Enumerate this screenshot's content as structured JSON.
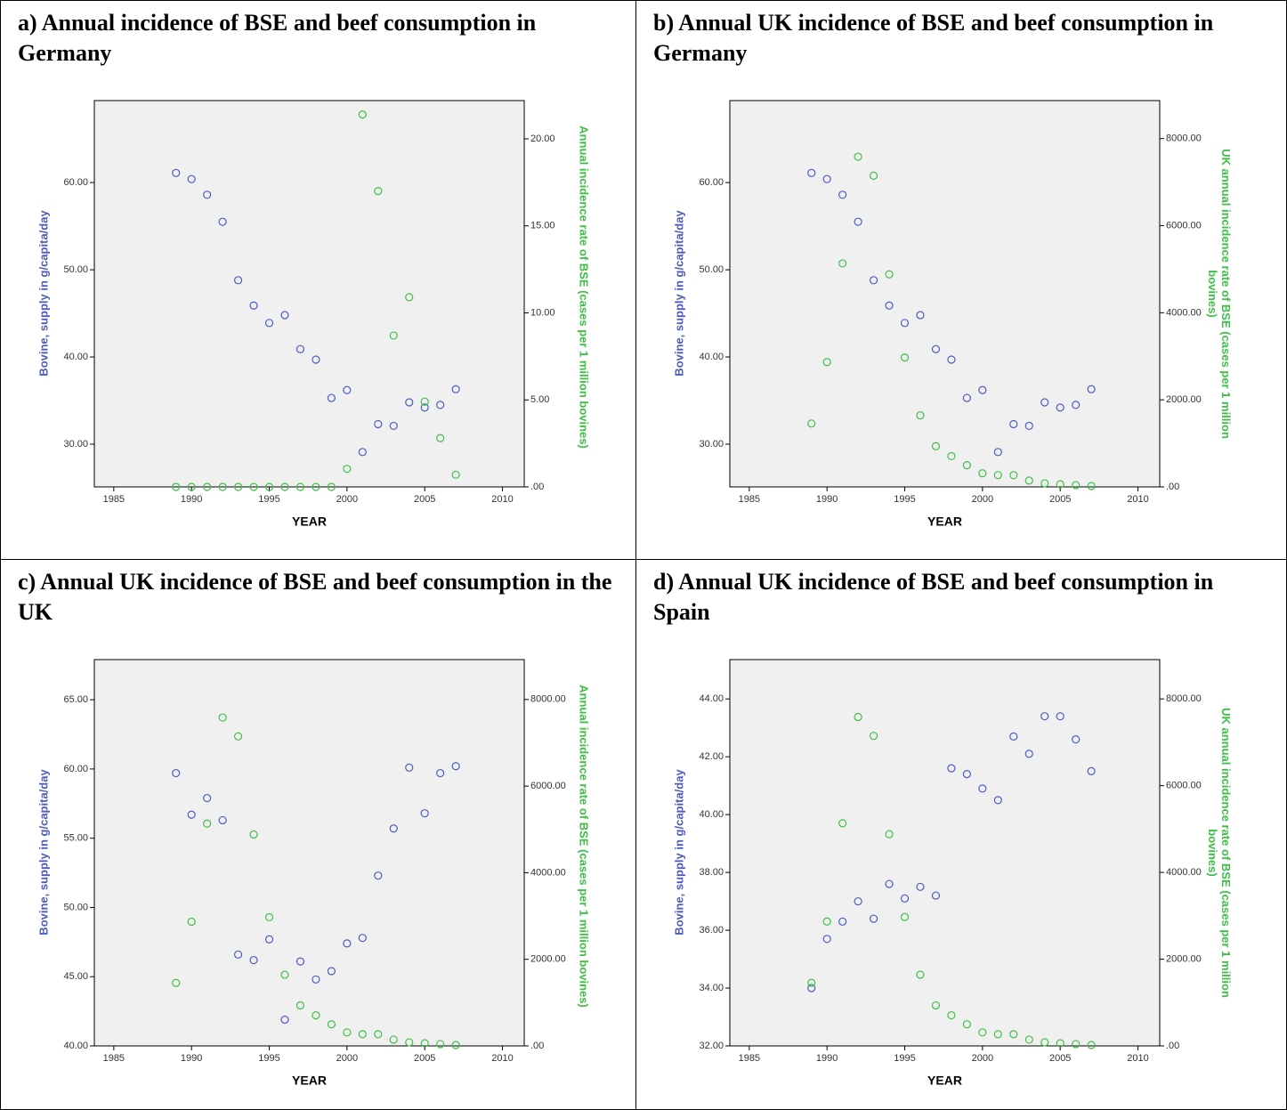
{
  "chart_data": [
    {
      "type": "scatter",
      "title": "a) Annual incidence of BSE and beef consumption in Germany",
      "xlabel": "YEAR",
      "ylabel": "Bovine, supply in g/capita/day",
      "y2label": "Annual incidence rate of BSE (cases per 1 million bovines)",
      "x": [
        1989,
        1990,
        1991,
        1992,
        1993,
        1994,
        1995,
        1996,
        1997,
        1998,
        1999,
        2000,
        2001,
        2002,
        2003,
        2004,
        2005,
        2006,
        2007
      ],
      "xlim": [
        1983.75,
        2011.4
      ],
      "xticks": [
        1985,
        1990,
        1995,
        2000,
        2005,
        2010
      ],
      "ylim": [
        25.1,
        69.4
      ],
      "yticks": [
        {
          "value": 30,
          "label": "30.00"
        },
        {
          "value": 40,
          "label": "40.00"
        },
        {
          "value": 50,
          "label": "50.00"
        },
        {
          "value": 60,
          "label": "60.00"
        }
      ],
      "y2lim": [
        0,
        22.2
      ],
      "y2ticks": [
        {
          "value": 0,
          "label": ".00"
        },
        {
          "value": 5,
          "label": "5.00"
        },
        {
          "value": 10,
          "label": "10.00"
        },
        {
          "value": 15,
          "label": "15.00"
        },
        {
          "value": 20,
          "label": "20.00"
        }
      ],
      "series": [
        {
          "color": "#4a5cc0",
          "values": [
            61.1,
            60.4,
            58.6,
            55.5,
            48.8,
            45.9,
            43.9,
            44.8,
            40.9,
            39.7,
            35.3,
            36.2,
            29.1,
            32.3,
            32.1,
            34.8,
            34.2,
            34.5,
            36.3
          ]
        },
        {
          "color": "#3dbf45",
          "axis": "y2",
          "values": [
            0,
            0,
            0,
            0,
            0,
            0,
            0,
            0,
            0,
            0,
            0,
            1.04,
            21.4,
            17.0,
            8.7,
            10.9,
            4.9,
            2.8,
            0.7
          ]
        }
      ]
    },
    {
      "type": "scatter",
      "title": "b) Annual UK incidence of BSE and beef consumption in Germany",
      "xlabel": "YEAR",
      "ylabel": "Bovine, supply in g/capita/day",
      "y2label": "UK annual incidence rate of BSE (cases per 1 million bovines)",
      "x": [
        1989,
        1990,
        1991,
        1992,
        1993,
        1994,
        1995,
        1996,
        1997,
        1998,
        1999,
        2000,
        2001,
        2002,
        2003,
        2004,
        2005,
        2006,
        2007
      ],
      "xlim": [
        1983.75,
        2011.4
      ],
      "xticks": [
        1985,
        1990,
        1995,
        2000,
        2005,
        2010
      ],
      "ylim": [
        25.1,
        69.4
      ],
      "yticks": [
        {
          "value": 30,
          "label": "30.00"
        },
        {
          "value": 40,
          "label": "40.00"
        },
        {
          "value": 50,
          "label": "50.00"
        },
        {
          "value": 60,
          "label": "60.00"
        }
      ],
      "y2lim": [
        0,
        8873
      ],
      "y2ticks": [
        {
          "value": 0,
          "label": ".00"
        },
        {
          "value": 2000,
          "label": "2000.00"
        },
        {
          "value": 4000,
          "label": "4000.00"
        },
        {
          "value": 6000,
          "label": "6000.00"
        },
        {
          "value": 8000,
          "label": "8000.00"
        }
      ],
      "series": [
        {
          "color": "#4a5cc0",
          "values": [
            61.1,
            60.4,
            58.6,
            55.5,
            48.8,
            45.9,
            43.9,
            44.8,
            40.9,
            39.7,
            35.3,
            36.2,
            29.1,
            32.3,
            32.1,
            34.8,
            34.2,
            34.5,
            36.3
          ]
        },
        {
          "color": "#3dbf45",
          "axis": "y2",
          "values": [
            1455,
            2868,
            5133,
            7584,
            7148,
            4883,
            2972,
            1642,
            935,
            707,
            499,
            312,
            270,
            270,
            145,
            83,
            62,
            42,
            21
          ]
        }
      ]
    },
    {
      "type": "scatter",
      "title": "c) Annual UK incidence of BSE and beef consumption in the UK",
      "xlabel": "YEAR",
      "ylabel": "Bovine, supply in g/capita/day",
      "y2label": "Annual incidence rate of BSE (cases per 1 million bovines)",
      "x": [
        1989,
        1990,
        1991,
        1992,
        1993,
        1994,
        1995,
        1996,
        1997,
        1998,
        1999,
        2000,
        2001,
        2002,
        2003,
        2004,
        2005,
        2006,
        2007
      ],
      "xlim": [
        1983.75,
        2011.4
      ],
      "xticks": [
        1985,
        1990,
        1995,
        2000,
        2005,
        2010
      ],
      "ylim": [
        40,
        67.9
      ],
      "yticks": [
        {
          "value": 40,
          "label": "40.00"
        },
        {
          "value": 45,
          "label": "45.00"
        },
        {
          "value": 50,
          "label": "50.00"
        },
        {
          "value": 55,
          "label": "55.00"
        },
        {
          "value": 60,
          "label": "60.00"
        },
        {
          "value": 65,
          "label": "65.00"
        }
      ],
      "y2lim": [
        0,
        8921
      ],
      "y2ticks": [
        {
          "value": 0,
          "label": ".00"
        },
        {
          "value": 2000,
          "label": "2000.00"
        },
        {
          "value": 4000,
          "label": "4000.00"
        },
        {
          "value": 6000,
          "label": "6000.00"
        },
        {
          "value": 8000,
          "label": "8000.00"
        }
      ],
      "series": [
        {
          "color": "#4a5cc0",
          "values": [
            59.7,
            56.7,
            57.9,
            56.3,
            46.6,
            46.2,
            47.7,
            41.9,
            46.1,
            44.8,
            45.4,
            47.4,
            47.8,
            52.3,
            55.7,
            60.1,
            56.8,
            59.7,
            60.2
          ]
        },
        {
          "color": "#3dbf45",
          "axis": "y2",
          "values": [
            1455,
            2868,
            5133,
            7584,
            7148,
            4883,
            2972,
            1642,
            935,
            707,
            499,
            312,
            270,
            270,
            145,
            83,
            62,
            42,
            21
          ]
        }
      ]
    },
    {
      "type": "scatter",
      "title": "d) Annual UK incidence of BSE and beef consumption in Spain",
      "xlabel": "YEAR",
      "ylabel": "Bovine, supply in g/capita/day",
      "y2label": "UK annual incidence rate of BSE (cases per 1 million bovines)",
      "x": [
        1989,
        1990,
        1991,
        1992,
        1993,
        1994,
        1995,
        1996,
        1997,
        1998,
        1999,
        2000,
        2001,
        2002,
        2003,
        2004,
        2005,
        2006,
        2007
      ],
      "xlim": [
        1983.75,
        2011.4
      ],
      "xticks": [
        1985,
        1990,
        1995,
        2000,
        2005,
        2010
      ],
      "ylim": [
        32,
        45.36
      ],
      "yticks": [
        {
          "value": 32,
          "label": "32.00"
        },
        {
          "value": 34,
          "label": "34.00"
        },
        {
          "value": 36,
          "label": "36.00"
        },
        {
          "value": 38,
          "label": "38.00"
        },
        {
          "value": 40,
          "label": "40.00"
        },
        {
          "value": 42,
          "label": "42.00"
        },
        {
          "value": 44,
          "label": "44.00"
        }
      ],
      "y2lim": [
        0,
        8907
      ],
      "y2ticks": [
        {
          "value": 0,
          "label": ".00"
        },
        {
          "value": 2000,
          "label": "2000.00"
        },
        {
          "value": 4000,
          "label": "4000.00"
        },
        {
          "value": 6000,
          "label": "6000.00"
        },
        {
          "value": 8000,
          "label": "8000.00"
        }
      ],
      "series": [
        {
          "color": "#4a5cc0",
          "values": [
            34.0,
            35.7,
            36.3,
            37.0,
            36.4,
            37.6,
            37.1,
            37.5,
            37.2,
            41.6,
            41.4,
            40.9,
            40.5,
            42.7,
            42.1,
            43.4,
            43.4,
            42.6,
            41.5
          ]
        },
        {
          "color": "#3dbf45",
          "axis": "y2",
          "values": [
            1455,
            2868,
            5133,
            7584,
            7148,
            4883,
            2972,
            1642,
            935,
            707,
            499,
            312,
            270,
            270,
            145,
            83,
            62,
            42,
            21
          ]
        }
      ]
    }
  ]
}
